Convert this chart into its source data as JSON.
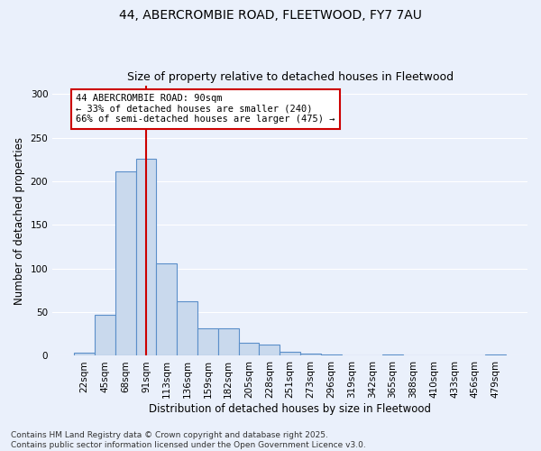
{
  "title": "44, ABERCROMBIE ROAD, FLEETWOOD, FY7 7AU",
  "subtitle": "Size of property relative to detached houses in Fleetwood",
  "xlabel": "Distribution of detached houses by size in Fleetwood",
  "ylabel": "Number of detached properties",
  "bar_color": "#c9d9ed",
  "bar_edge_color": "#5b8fc9",
  "background_color": "#eaf0fb",
  "grid_color": "#ffffff",
  "categories": [
    "22sqm",
    "45sqm",
    "68sqm",
    "91sqm",
    "113sqm",
    "136sqm",
    "159sqm",
    "182sqm",
    "205sqm",
    "228sqm",
    "251sqm",
    "273sqm",
    "296sqm",
    "319sqm",
    "342sqm",
    "365sqm",
    "388sqm",
    "410sqm",
    "433sqm",
    "456sqm",
    "479sqm"
  ],
  "values": [
    4,
    47,
    211,
    226,
    106,
    63,
    31,
    31,
    15,
    13,
    5,
    3,
    2,
    0,
    0,
    2,
    0,
    0,
    0,
    0,
    2
  ],
  "red_line_x": 3.0,
  "annotation_text": "44 ABERCROMBIE ROAD: 90sqm\n← 33% of detached houses are smaller (240)\n66% of semi-detached houses are larger (475) →",
  "annotation_box_color": "#ffffff",
  "annotation_box_edge_color": "#cc0000",
  "red_line_color": "#cc0000",
  "ylim": [
    0,
    310
  ],
  "yticks": [
    0,
    50,
    100,
    150,
    200,
    250,
    300
  ],
  "footnote": "Contains HM Land Registry data © Crown copyright and database right 2025.\nContains public sector information licensed under the Open Government Licence v3.0.",
  "title_fontsize": 10,
  "subtitle_fontsize": 9,
  "axis_fontsize": 8.5,
  "tick_fontsize": 7.5,
  "annotation_fontsize": 7.5,
  "footnote_fontsize": 6.5
}
